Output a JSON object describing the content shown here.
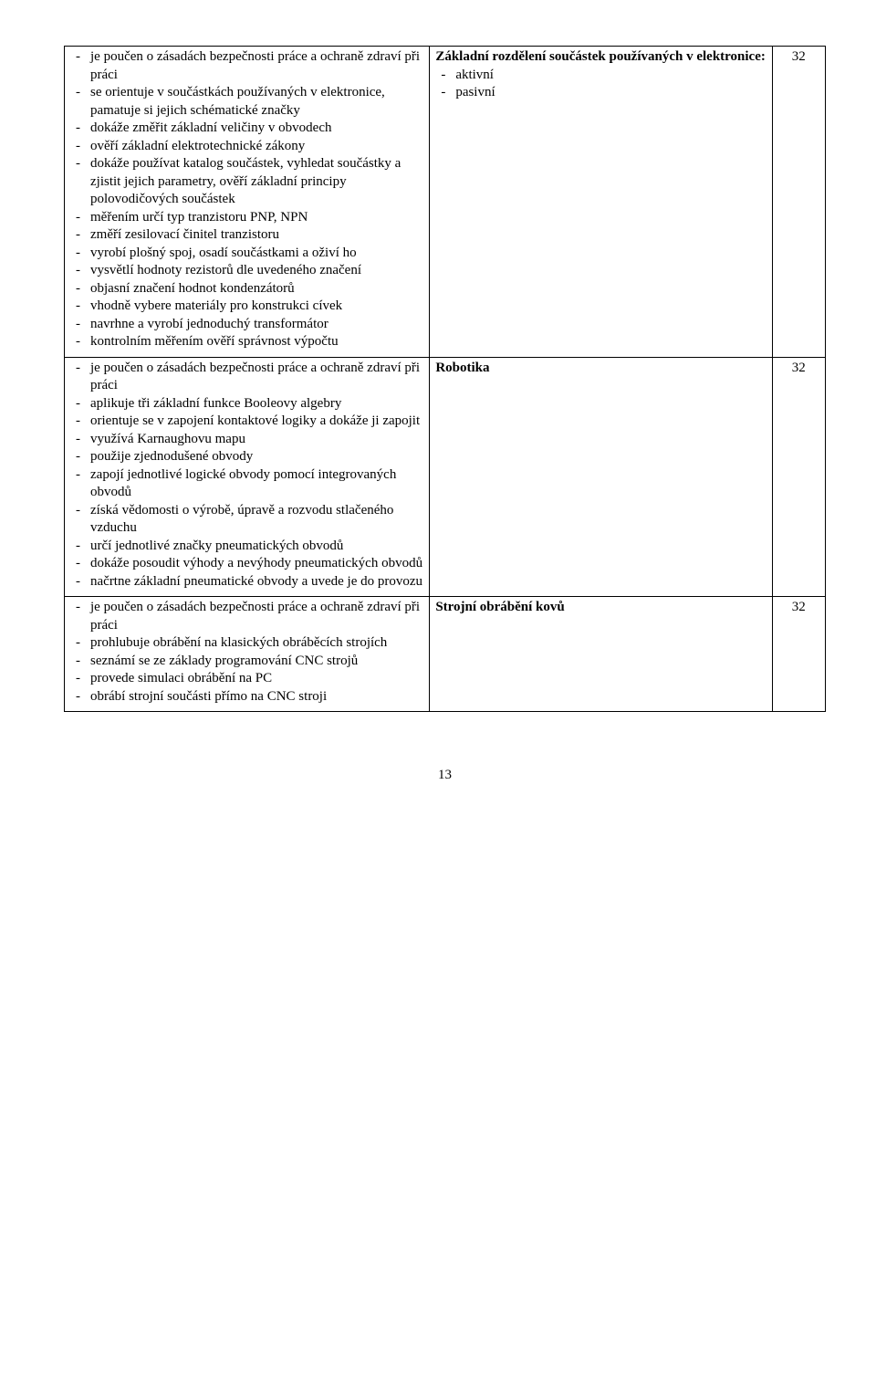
{
  "page_number": "13",
  "rows": [
    {
      "left_items": [
        "je poučen o zásadách bezpečnosti práce a ochraně zdraví při práci",
        "se orientuje v součástkách používaných v elektronice, pamatuje si jejich schématické značky",
        "dokáže změřit základní veličiny v obvodech",
        "ověří základní elektrotechnické zákony",
        "dokáže používat katalog součástek, vyhledat součástky a zjistit jejich parametry, ověří základní principy polovodičových součástek",
        "měřením určí typ tranzistoru PNP, NPN",
        "změří zesilovací činitel tranzistoru",
        "vyrobí plošný spoj, osadí součástkami a oživí ho",
        "vysvětlí hodnoty rezistorů dle uvedeného značení",
        "objasní značení hodnot kondenzátorů",
        "vhodně vybere materiály pro konstrukci cívek",
        "navrhne a vyrobí jednoduchý transformátor",
        "kontrolním měřením ověří správnost výpočtu"
      ],
      "right_title": "Základní rozdělení součástek používaných v elektronice:",
      "right_items": [
        "aktivní",
        "pasivní"
      ],
      "hours": "32"
    },
    {
      "left_items": [
        "je poučen o zásadách bezpečnosti práce a ochraně zdraví při práci",
        "aplikuje tři základní funkce Booleovy algebry",
        "orientuje se v zapojení kontaktové logiky a dokáže ji zapojit",
        "využívá Karnaughovu mapu",
        "použije zjednodušené obvody",
        "zapojí jednotlivé logické obvody pomocí integrovaných obvodů",
        "získá vědomosti o výrobě, úpravě a rozvodu stlačeného vzduchu",
        "určí jednotlivé značky pneumatických obvodů",
        "dokáže posoudit výhody a nevýhody pneumatických obvodů",
        "načrtne základní pneumatické obvody a uvede je do provozu"
      ],
      "right_title": "Robotika",
      "right_items": [],
      "hours": "32"
    },
    {
      "left_items": [
        "je poučen o zásadách bezpečnosti práce a ochraně zdraví při práci",
        "prohlubuje obrábění na klasických obráběcích strojích",
        "seznámí se ze základy programování CNC strojů",
        "provede simulaci obrábění na PC",
        "obrábí strojní součásti přímo na CNC stroji"
      ],
      "right_title": "Strojní obrábění kovů",
      "right_items": [],
      "hours": "32"
    }
  ]
}
